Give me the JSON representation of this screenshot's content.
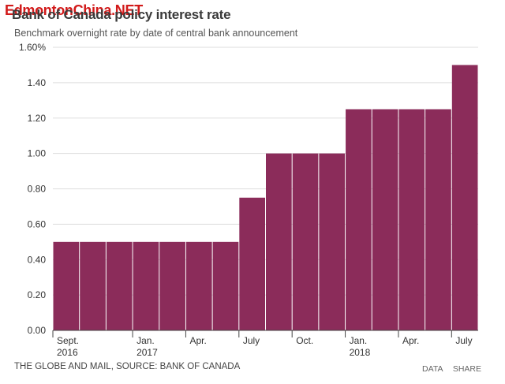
{
  "header": {
    "title": "Bank of Canada policy interest rate",
    "subtitle": "Benchmark overnight rate by date of central bank announcement",
    "watermark": "EdmontonChina.NET"
  },
  "footer": {
    "source": "THE GLOBE AND MAIL, SOURCE: BANK OF CANADA",
    "data_label": "DATA",
    "share_label": "SHARE"
  },
  "colors": {
    "bar": "#8b2c5a",
    "grid": "#dddddd",
    "axis": "#444444",
    "watermark": "#d21a1a"
  },
  "chart_data": {
    "type": "bar",
    "title": "Bank of Canada policy interest rate",
    "subtitle": "Benchmark overnight rate by date of central bank announcement",
    "ylabel": "",
    "xlabel": "",
    "ylim": [
      0,
      1.6
    ],
    "yticks": [
      {
        "value": 0.0,
        "label": "0.00"
      },
      {
        "value": 0.2,
        "label": "0.20"
      },
      {
        "value": 0.4,
        "label": "0.40"
      },
      {
        "value": 0.6,
        "label": "0.60"
      },
      {
        "value": 0.8,
        "label": "0.80"
      },
      {
        "value": 1.0,
        "label": "1.00"
      },
      {
        "value": 1.2,
        "label": "1.20"
      },
      {
        "value": 1.4,
        "label": "1.40"
      },
      {
        "value": 1.6,
        "label": "1.60%"
      }
    ],
    "values": [
      0.5,
      0.5,
      0.5,
      0.5,
      0.5,
      0.5,
      0.5,
      0.75,
      1.0,
      1.0,
      1.0,
      1.25,
      1.25,
      1.25,
      1.25,
      1.5
    ],
    "xticks": [
      {
        "index": 0,
        "line1": "Sept.",
        "line2": "2016"
      },
      {
        "index": 3,
        "line1": "Jan.",
        "line2": "2017"
      },
      {
        "index": 5,
        "line1": "Apr.",
        "line2": ""
      },
      {
        "index": 7,
        "line1": "July",
        "line2": ""
      },
      {
        "index": 9,
        "line1": "Oct.",
        "line2": ""
      },
      {
        "index": 11,
        "line1": "Jan.",
        "line2": "2018"
      },
      {
        "index": 13,
        "line1": "Apr.",
        "line2": ""
      },
      {
        "index": 15,
        "line1": "July",
        "line2": ""
      }
    ],
    "grid": true
  }
}
